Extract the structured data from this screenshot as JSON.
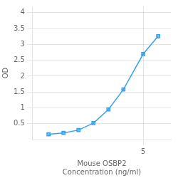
{
  "chart_data": {
    "type": "line",
    "x": [
      0.0625,
      0.125,
      0.25,
      0.5,
      1,
      2,
      5,
      10
    ],
    "values": [
      0.168,
      0.21,
      0.3,
      0.52,
      0.95,
      1.58,
      2.7,
      3.26
    ],
    "marker": "square",
    "log": "x",
    "xlabel": "Mouse OSBP2\nConcentration (ng/ml)",
    "ylabel": "OD",
    "xlim": [
      0.03,
      18
    ],
    "xticks": [
      5
    ],
    "ylim": [
      0.0,
      4.2
    ],
    "yticks": [
      0.5,
      1,
      1.5,
      2,
      2.5,
      3,
      3.5,
      4
    ],
    "grid": true
  }
}
